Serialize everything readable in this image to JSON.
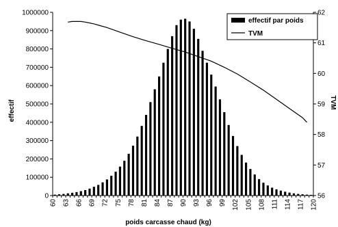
{
  "chart_data": {
    "type": "bar",
    "title": "",
    "xlabel": "poids carcasse chaud (kg)",
    "ylabel": "effectif",
    "y2label": "TVM",
    "ylim": [
      0,
      1000000
    ],
    "y2lim": [
      56,
      62
    ],
    "y_ticks": [
      "0",
      "100000",
      "200000",
      "300000",
      "400000",
      "500000",
      "600000",
      "700000",
      "800000",
      "900000",
      "1000000"
    ],
    "y2_ticks": [
      "56",
      "57",
      "58",
      "59",
      "60",
      "61",
      "62"
    ],
    "x_ticks": [
      "60",
      "63",
      "66",
      "69",
      "72",
      "75",
      "78",
      "81",
      "84",
      "87",
      "90",
      "93",
      "96",
      "99",
      "102",
      "105",
      "108",
      "111",
      "114",
      "117",
      "120"
    ],
    "grid": false,
    "legend_position": "top-right",
    "series": [
      {
        "name": "effectif par poids",
        "type": "bar",
        "color": "#000000",
        "x": [
          60,
          61,
          62,
          63,
          64,
          65,
          66,
          67,
          68,
          69,
          70,
          71,
          72,
          73,
          74,
          75,
          76,
          77,
          78,
          79,
          80,
          81,
          82,
          83,
          84,
          85,
          86,
          87,
          88,
          89,
          90,
          91,
          92,
          93,
          94,
          95,
          96,
          97,
          98,
          99,
          100,
          101,
          102,
          103,
          104,
          105,
          106,
          107,
          108,
          109,
          110,
          111,
          112,
          113,
          114,
          115,
          116,
          117,
          118,
          119
        ],
        "values": [
          5000,
          7000,
          9000,
          12000,
          15000,
          19000,
          24000,
          30000,
          38000,
          48000,
          58000,
          72000,
          88000,
          108000,
          130000,
          158000,
          190000,
          228000,
          272000,
          322000,
          380000,
          440000,
          510000,
          580000,
          650000,
          725000,
          800000,
          870000,
          930000,
          960000,
          965000,
          950000,
          910000,
          855000,
          790000,
          725000,
          660000,
          595000,
          525000,
          455000,
          385000,
          325000,
          270000,
          222000,
          180000,
          145000,
          115000,
          90000,
          70000,
          55000,
          43000,
          34000,
          27000,
          21000,
          16000,
          12000,
          9000,
          7000,
          5000,
          4000
        ]
      },
      {
        "name": "TVM",
        "type": "line",
        "axis": "right",
        "color": "#000000",
        "x": [
          63,
          64,
          65,
          66,
          67,
          68,
          69,
          70,
          72,
          75,
          78,
          81,
          84,
          87,
          90,
          93,
          96,
          99,
          102,
          105,
          108,
          111,
          114,
          117,
          118
        ],
        "values": [
          61.68,
          61.7,
          61.7,
          61.7,
          61.68,
          61.65,
          61.62,
          61.58,
          61.5,
          61.35,
          61.2,
          61.07,
          60.95,
          60.82,
          60.7,
          60.55,
          60.4,
          60.2,
          59.98,
          59.72,
          59.45,
          59.15,
          58.85,
          58.55,
          58.4
        ]
      }
    ]
  }
}
